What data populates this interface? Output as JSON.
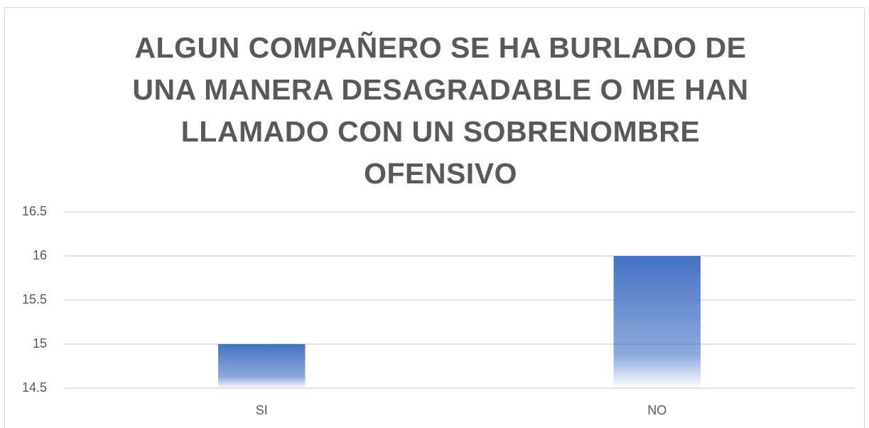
{
  "chart_data": {
    "type": "bar",
    "title": "ALGUN COMPAÑERO SE HA BURLADO DE UNA MANERA DESAGRADABLE O ME HAN LLAMADO CON UN SOBRENOMBRE OFENSIVO",
    "categories": [
      "SI",
      "NO"
    ],
    "values": [
      15,
      16
    ],
    "color": "#4472c4",
    "ylim": [
      14.5,
      16.5
    ],
    "yticks": [
      14.5,
      15,
      15.5,
      16,
      16.5
    ],
    "grid": true
  }
}
